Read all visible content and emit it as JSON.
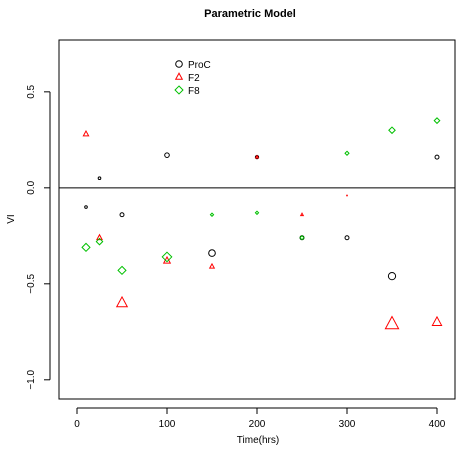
{
  "chart_data": {
    "type": "scatter",
    "title": "Parametric Model",
    "xlabel": "Time(hrs)",
    "ylabel": "VI",
    "xlim": [
      -20,
      420
    ],
    "ylim": [
      -1.1,
      0.77
    ],
    "x_ticks": [
      0,
      100,
      200,
      300,
      400
    ],
    "y_ticks": [
      -1.0,
      -0.5,
      0.0,
      0.5
    ],
    "x_tick_labels": [
      "0",
      "100",
      "200",
      "300",
      "400"
    ],
    "y_tick_labels": [
      "−1.0",
      "−0.5",
      "0.0",
      "0.5"
    ],
    "reference_line_y": 0,
    "grid": false,
    "legend_position": "top-center",
    "series": [
      {
        "name": "ProC",
        "marker": "circle",
        "color": "#000000",
        "points": [
          {
            "x": 10,
            "y": -0.1,
            "size": 0.4
          },
          {
            "x": 25,
            "y": 0.05,
            "size": 0.4
          },
          {
            "x": 50,
            "y": -0.14,
            "size": 0.6
          },
          {
            "x": 100,
            "y": 0.17,
            "size": 0.7
          },
          {
            "x": 150,
            "y": -0.34,
            "size": 1.0
          },
          {
            "x": 200,
            "y": 0.16,
            "size": 0.5
          },
          {
            "x": 250,
            "y": -0.26,
            "size": 0.6
          },
          {
            "x": 300,
            "y": -0.26,
            "size": 0.6
          },
          {
            "x": 350,
            "y": -0.46,
            "size": 1.1
          },
          {
            "x": 400,
            "y": 0.16,
            "size": 0.6
          }
        ]
      },
      {
        "name": "F2",
        "marker": "triangle",
        "color": "#ff0000",
        "points": [
          {
            "x": 10,
            "y": 0.28,
            "size": 0.8
          },
          {
            "x": 25,
            "y": -0.26,
            "size": 0.8
          },
          {
            "x": 50,
            "y": -0.6,
            "size": 1.6
          },
          {
            "x": 100,
            "y": -0.38,
            "size": 1.0
          },
          {
            "x": 150,
            "y": -0.41,
            "size": 0.7
          },
          {
            "x": 200,
            "y": 0.16,
            "size": 0.4
          },
          {
            "x": 250,
            "y": -0.14,
            "size": 0.4
          },
          {
            "x": 300,
            "y": -0.04,
            "size": 0.3
          },
          {
            "x": 350,
            "y": -0.71,
            "size": 2.0
          },
          {
            "x": 400,
            "y": -0.7,
            "size": 1.4
          }
        ]
      },
      {
        "name": "F8",
        "marker": "diamond",
        "color": "#00c000",
        "points": [
          {
            "x": 10,
            "y": -0.31,
            "size": 1.0
          },
          {
            "x": 25,
            "y": -0.28,
            "size": 0.8
          },
          {
            "x": 50,
            "y": -0.43,
            "size": 1.0
          },
          {
            "x": 100,
            "y": -0.36,
            "size": 1.2
          },
          {
            "x": 150,
            "y": -0.14,
            "size": 0.4
          },
          {
            "x": 200,
            "y": -0.13,
            "size": 0.4
          },
          {
            "x": 250,
            "y": -0.26,
            "size": 0.5
          },
          {
            "x": 300,
            "y": 0.18,
            "size": 0.5
          },
          {
            "x": 350,
            "y": 0.3,
            "size": 0.8
          },
          {
            "x": 400,
            "y": 0.35,
            "size": 0.7
          }
        ]
      }
    ]
  }
}
